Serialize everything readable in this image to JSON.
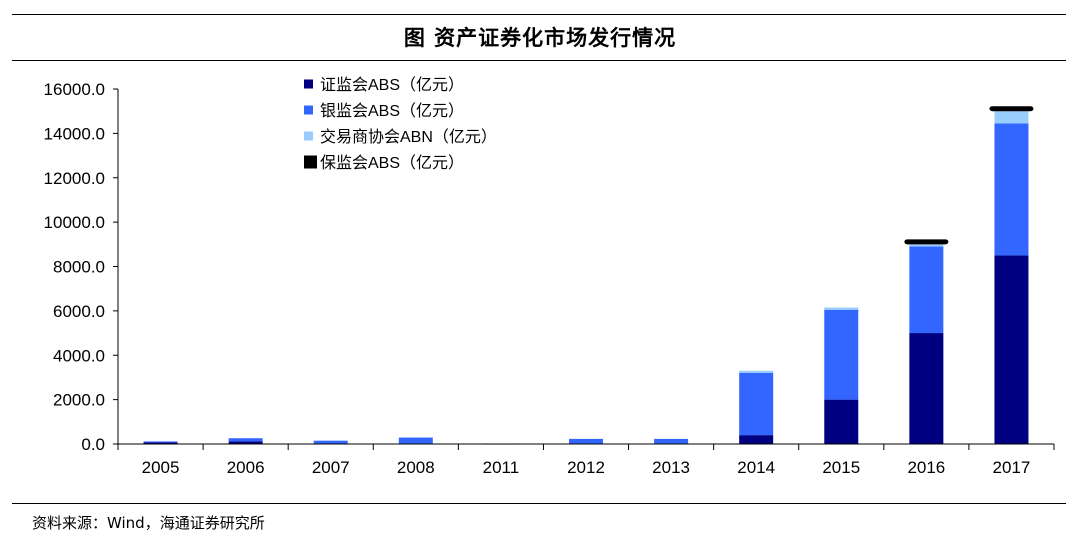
{
  "title": "图  资产证券化市场发行情况",
  "source": "资料来源：Wind，海通证券研究所",
  "chart_data": {
    "type": "bar",
    "stacked": true,
    "categories": [
      "2005",
      "2006",
      "2007",
      "2008",
      "2011",
      "2012",
      "2013",
      "2014",
      "2015",
      "2016",
      "2017"
    ],
    "series": [
      {
        "name": "证监会ABS（亿元）",
        "color": "#000080",
        "style": "bar",
        "values": [
          70,
          120,
          0,
          0,
          0,
          0,
          0,
          400,
          2000,
          5000,
          8500
        ]
      },
      {
        "name": "银监会ABS（亿元）",
        "color": "#3366ff",
        "style": "bar",
        "values": [
          45,
          140,
          150,
          290,
          20,
          230,
          230,
          2800,
          4050,
          3900,
          5950
        ]
      },
      {
        "name": "交易商协会ABN（亿元）",
        "color": "#99ccff",
        "style": "bar",
        "values": [
          0,
          0,
          0,
          0,
          0,
          0,
          0,
          100,
          100,
          100,
          550
        ]
      },
      {
        "name": "保监会ABS（亿元）",
        "color": "#000000",
        "style": "marker",
        "values": [
          0,
          0,
          0,
          0,
          0,
          0,
          0,
          0,
          0,
          150,
          100
        ]
      }
    ],
    "yticks": [
      "0.0",
      "2000.0",
      "4000.0",
      "6000.0",
      "8000.0",
      "10000.0",
      "12000.0",
      "14000.0",
      "16000.0"
    ],
    "ylim": [
      0,
      16000
    ],
    "legend": "top-center",
    "grid": false
  }
}
